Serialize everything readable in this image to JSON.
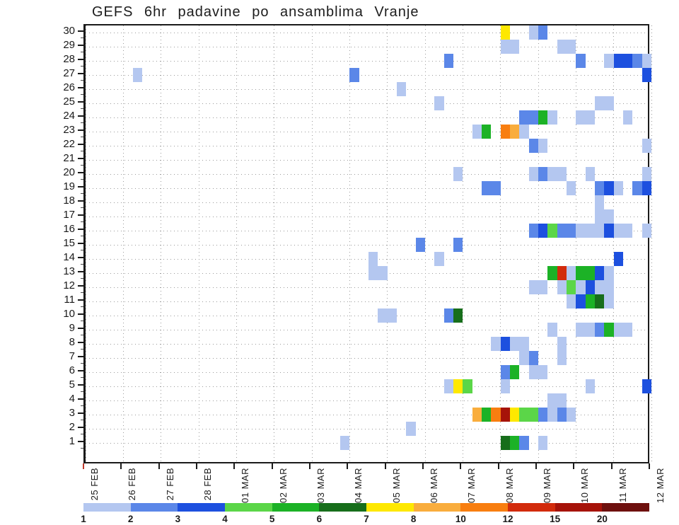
{
  "title": "GEFS 6hr padavine po ansamblima Vranje",
  "chart_data": {
    "type": "heatmap",
    "title": "GEFS 6hr padavine po ansamblima Vranje",
    "x_axis": {
      "labels": [
        "25 FEB",
        "26 FEB",
        "27 FEB",
        "28 FEB",
        "01 MAR",
        "02 MAR",
        "03 MAR",
        "04 MAR",
        "05 MAR",
        "06 MAR",
        "07 MAR",
        "08 MAR",
        "09 MAR",
        "10 MAR",
        "11 MAR",
        "12 MAR"
      ],
      "steps_per_day": 4,
      "origin_tick_color": "#c0392b"
    },
    "y_axis": {
      "min": 1,
      "max": 30,
      "tick_labels": [
        "30",
        "29",
        "28",
        "27",
        "26",
        "25",
        "24",
        "23",
        "22",
        "21",
        "20",
        "19",
        "18",
        "17",
        "16",
        "15",
        "14",
        "13",
        "12",
        "11",
        "10",
        "9",
        "8",
        "7",
        "6",
        "5",
        "4",
        "3",
        "2",
        "1"
      ]
    },
    "grid": "dotted",
    "levels": [
      {
        "key": "b1",
        "label": "1",
        "range": "1-2",
        "color": "#b4c7f0"
      },
      {
        "key": "b2",
        "label": "2",
        "range": "2-3",
        "color": "#5b87e8"
      },
      {
        "key": "b3",
        "label": "3",
        "range": "3-4",
        "color": "#1d50df"
      },
      {
        "key": "g1",
        "label": "4",
        "range": "4-5",
        "color": "#5bd648"
      },
      {
        "key": "g2",
        "label": "5",
        "range": "5-6",
        "color": "#1cb226"
      },
      {
        "key": "g3",
        "label": "6",
        "range": "6-7",
        "color": "#176e1b"
      },
      {
        "key": "y",
        "label": "7",
        "range": "7-8",
        "color": "#fee800"
      },
      {
        "key": "o1",
        "label": "8",
        "range": "8-10",
        "color": "#f9ad3d"
      },
      {
        "key": "o2",
        "label": "10",
        "range": "10-12",
        "color": "#f87e10"
      },
      {
        "key": "r1",
        "label": "12",
        "range": "12-15",
        "color": "#d22b0c"
      },
      {
        "key": "r2",
        "label": "15",
        "range": "15-20",
        "color": "#a61309"
      },
      {
        "key": "r3",
        "label": "20",
        "range": "20+",
        "color": "#6e100e"
      }
    ],
    "cells": [
      [
        30,
        44,
        "y"
      ],
      [
        30,
        47,
        "b1"
      ],
      [
        30,
        48,
        "b2"
      ],
      [
        29,
        44,
        "b1"
      ],
      [
        29,
        45,
        "b1"
      ],
      [
        29,
        50,
        "b1"
      ],
      [
        29,
        51,
        "b1"
      ],
      [
        28,
        38,
        "b2"
      ],
      [
        28,
        52,
        "b2"
      ],
      [
        28,
        55,
        "b1"
      ],
      [
        28,
        56,
        "b3"
      ],
      [
        28,
        57,
        "b3"
      ],
      [
        28,
        58,
        "b2"
      ],
      [
        28,
        59,
        "b1"
      ],
      [
        27,
        5,
        "b1"
      ],
      [
        27,
        28,
        "b2"
      ],
      [
        27,
        59,
        "b3"
      ],
      [
        26,
        33,
        "b1"
      ],
      [
        25,
        37,
        "b1"
      ],
      [
        25,
        54,
        "b1"
      ],
      [
        25,
        55,
        "b1"
      ],
      [
        24,
        46,
        "b2"
      ],
      [
        24,
        47,
        "b2"
      ],
      [
        24,
        48,
        "g2"
      ],
      [
        24,
        49,
        "b1"
      ],
      [
        24,
        52,
        "b1"
      ],
      [
        24,
        53,
        "b1"
      ],
      [
        24,
        57,
        "b1"
      ],
      [
        23,
        41,
        "b1"
      ],
      [
        23,
        42,
        "g2"
      ],
      [
        23,
        44,
        "o2"
      ],
      [
        23,
        45,
        "o1"
      ],
      [
        23,
        46,
        "b1"
      ],
      [
        22,
        47,
        "b2"
      ],
      [
        22,
        48,
        "b1"
      ],
      [
        22,
        59,
        "b1"
      ],
      [
        20,
        39,
        "b1"
      ],
      [
        20,
        47,
        "b1"
      ],
      [
        20,
        48,
        "b2"
      ],
      [
        20,
        49,
        "b1"
      ],
      [
        20,
        50,
        "b1"
      ],
      [
        20,
        53,
        "b1"
      ],
      [
        20,
        59,
        "b1"
      ],
      [
        19,
        42,
        "b2"
      ],
      [
        19,
        43,
        "b2"
      ],
      [
        19,
        51,
        "b1"
      ],
      [
        19,
        54,
        "b2"
      ],
      [
        19,
        55,
        "b3"
      ],
      [
        19,
        56,
        "b1"
      ],
      [
        19,
        58,
        "b2"
      ],
      [
        19,
        59,
        "b3"
      ],
      [
        18,
        54,
        "b1"
      ],
      [
        17,
        54,
        "b1"
      ],
      [
        17,
        55,
        "b1"
      ],
      [
        16,
        47,
        "b2"
      ],
      [
        16,
        48,
        "b3"
      ],
      [
        16,
        49,
        "g1"
      ],
      [
        16,
        50,
        "b2"
      ],
      [
        16,
        51,
        "b2"
      ],
      [
        16,
        52,
        "b1"
      ],
      [
        16,
        53,
        "b1"
      ],
      [
        16,
        54,
        "b1"
      ],
      [
        16,
        55,
        "b3"
      ],
      [
        16,
        56,
        "b1"
      ],
      [
        16,
        57,
        "b1"
      ],
      [
        16,
        59,
        "b1"
      ],
      [
        15,
        35,
        "b2"
      ],
      [
        15,
        39,
        "b2"
      ],
      [
        14,
        30,
        "b1"
      ],
      [
        14,
        37,
        "b1"
      ],
      [
        14,
        56,
        "b3"
      ],
      [
        13,
        30,
        "b1"
      ],
      [
        13,
        31,
        "b1"
      ],
      [
        13,
        49,
        "g2"
      ],
      [
        13,
        50,
        "r1"
      ],
      [
        13,
        51,
        "b1"
      ],
      [
        13,
        52,
        "g2"
      ],
      [
        13,
        53,
        "g2"
      ],
      [
        13,
        54,
        "b3"
      ],
      [
        13,
        55,
        "b1"
      ],
      [
        12,
        47,
        "b1"
      ],
      [
        12,
        48,
        "b1"
      ],
      [
        12,
        50,
        "b1"
      ],
      [
        12,
        51,
        "g1"
      ],
      [
        12,
        52,
        "b1"
      ],
      [
        12,
        53,
        "b3"
      ],
      [
        12,
        54,
        "b1"
      ],
      [
        12,
        55,
        "b1"
      ],
      [
        11,
        51,
        "b1"
      ],
      [
        11,
        52,
        "b3"
      ],
      [
        11,
        53,
        "g2"
      ],
      [
        11,
        54,
        "g3"
      ],
      [
        11,
        55,
        "b1"
      ],
      [
        10,
        31,
        "b1"
      ],
      [
        10,
        32,
        "b1"
      ],
      [
        10,
        38,
        "b2"
      ],
      [
        10,
        39,
        "g3"
      ],
      [
        9,
        49,
        "b1"
      ],
      [
        9,
        52,
        "b1"
      ],
      [
        9,
        53,
        "b1"
      ],
      [
        9,
        54,
        "b2"
      ],
      [
        9,
        55,
        "g2"
      ],
      [
        9,
        56,
        "b1"
      ],
      [
        9,
        57,
        "b1"
      ],
      [
        8,
        43,
        "b1"
      ],
      [
        8,
        44,
        "b3"
      ],
      [
        8,
        45,
        "b1"
      ],
      [
        8,
        46,
        "b1"
      ],
      [
        8,
        50,
        "b1"
      ],
      [
        7,
        46,
        "b1"
      ],
      [
        7,
        47,
        "b2"
      ],
      [
        7,
        50,
        "b1"
      ],
      [
        6,
        44,
        "b2"
      ],
      [
        6,
        45,
        "g2"
      ],
      [
        6,
        47,
        "b1"
      ],
      [
        6,
        48,
        "b1"
      ],
      [
        5,
        38,
        "b1"
      ],
      [
        5,
        39,
        "y"
      ],
      [
        5,
        40,
        "g1"
      ],
      [
        5,
        44,
        "b1"
      ],
      [
        5,
        53,
        "b1"
      ],
      [
        5,
        59,
        "b3"
      ],
      [
        4,
        49,
        "b1"
      ],
      [
        4,
        50,
        "b1"
      ],
      [
        3,
        41,
        "o1"
      ],
      [
        3,
        42,
        "g2"
      ],
      [
        3,
        43,
        "o2"
      ],
      [
        3,
        44,
        "r2"
      ],
      [
        3,
        45,
        "y"
      ],
      [
        3,
        46,
        "g1"
      ],
      [
        3,
        47,
        "g1"
      ],
      [
        3,
        48,
        "b2"
      ],
      [
        3,
        49,
        "b1"
      ],
      [
        3,
        50,
        "b2"
      ],
      [
        3,
        51,
        "b1"
      ],
      [
        2,
        34,
        "b1"
      ],
      [
        1,
        27,
        "b1"
      ],
      [
        1,
        44,
        "g3"
      ],
      [
        1,
        45,
        "g2"
      ],
      [
        1,
        46,
        "b2"
      ],
      [
        1,
        48,
        "b1"
      ]
    ]
  }
}
